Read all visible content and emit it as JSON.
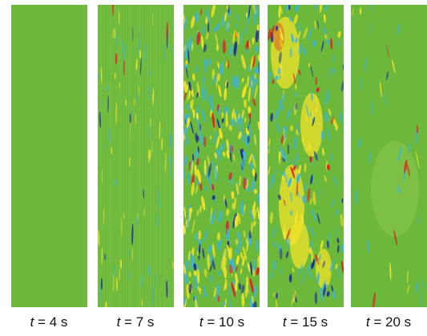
{
  "colors": {
    "background_field": "#6cb83a",
    "high": "#e11b1b",
    "mid_high": "#f2e32a",
    "mid_low": "#3fb5d6",
    "low": "#1a2a9c"
  },
  "panels": [
    {
      "t": "t",
      "eq": " = 4 s",
      "field": "uniform"
    },
    {
      "t": "t",
      "eq": " = 7 s",
      "field": "fine-vertical-streaks"
    },
    {
      "t": "t",
      "eq": " = 10 s",
      "field": "intense-small-scale"
    },
    {
      "t": "t",
      "eq": " = 15 s",
      "field": "large-scale-structures"
    },
    {
      "t": "t",
      "eq": " = 20 s",
      "field": "decaying"
    }
  ]
}
